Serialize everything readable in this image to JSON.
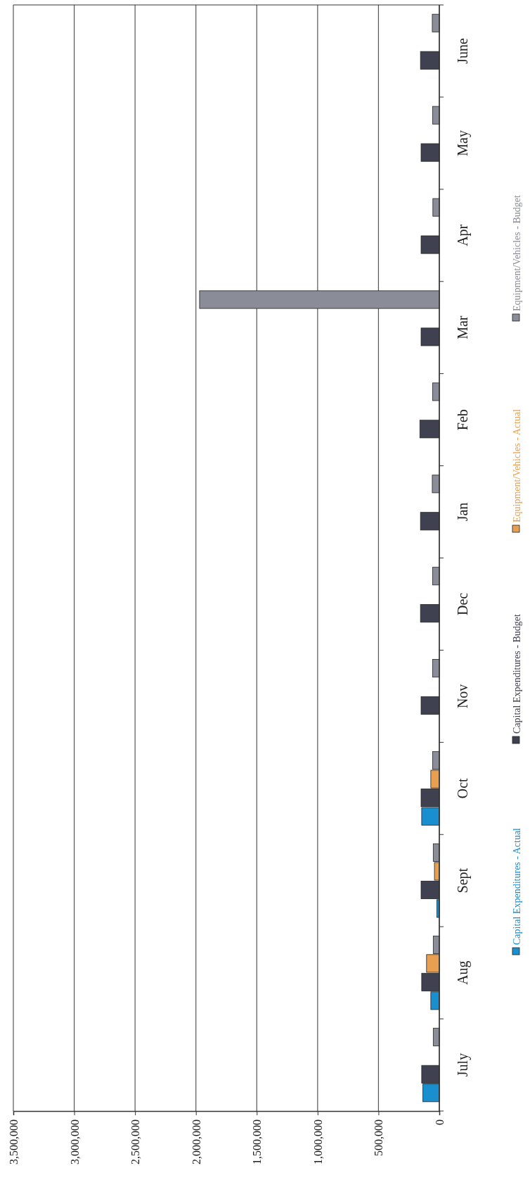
{
  "chart_data": {
    "type": "bar",
    "orientation": "horizontal",
    "categories": [
      "June",
      "May",
      "Apr",
      "Mar",
      "Feb",
      "Jan",
      "Dec",
      "Nov",
      "Oct",
      "Sept",
      "Aug",
      "July"
    ],
    "series": [
      {
        "name": "Capital Expenditures - Actual",
        "color": "#1a8fd0",
        "values": [
          null,
          null,
          null,
          null,
          null,
          null,
          null,
          null,
          145000,
          20000,
          70000,
          135000
        ]
      },
      {
        "name": "Capital Expenditures - Budget",
        "color": "#3f4150",
        "values": [
          155000,
          150000,
          150000,
          150000,
          160000,
          155000,
          155000,
          150000,
          150000,
          150000,
          145000,
          145000
        ]
      },
      {
        "name": "Equipment/Vehicles - Actual",
        "color": "#e8a050",
        "values": [
          null,
          null,
          null,
          null,
          null,
          null,
          null,
          null,
          70000,
          40000,
          105000,
          null
        ]
      },
      {
        "name": "Equipment/Vehicles - Budget",
        "color": "#8a8c98",
        "values": [
          58000,
          55000,
          53000,
          1970000,
          55000,
          58000,
          55000,
          55000,
          55000,
          50000,
          50000,
          50000
        ]
      }
    ],
    "xlim": [
      3500000,
      0
    ],
    "xticks": [
      {
        "value": 0,
        "label": "0"
      },
      {
        "value": 500000,
        "label": "500,000"
      },
      {
        "value": 1000000,
        "label": "1,000,000"
      },
      {
        "value": 1500000,
        "label": "1,500,000"
      },
      {
        "value": 2000000,
        "label": "2,000,000"
      },
      {
        "value": 2500000,
        "label": "2,500,000"
      },
      {
        "value": 3000000,
        "label": "3,000,000"
      },
      {
        "value": 3500000,
        "label": "3,500,000"
      }
    ],
    "grid": "x",
    "legend": "right"
  }
}
